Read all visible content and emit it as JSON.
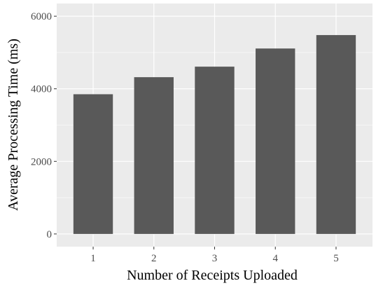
{
  "chart_data": {
    "type": "bar",
    "title": "",
    "xlabel": "Number of Receipts Uploaded",
    "ylabel": "Average Processing Time (ms)",
    "categories": [
      "1",
      "2",
      "3",
      "4",
      "5"
    ],
    "values": [
      3850,
      4320,
      4610,
      5110,
      5480
    ],
    "ylim": [
      -350,
      6350
    ],
    "yticks": [
      0,
      2000,
      4000,
      6000
    ],
    "ytick_labels": [
      "0",
      "2000",
      "4000",
      "6000"
    ],
    "grid": true,
    "colors": {
      "bar": "#595959",
      "panel": "#ebebeb",
      "grid_major": "#ffffff",
      "tick_mark": "#333333"
    }
  }
}
